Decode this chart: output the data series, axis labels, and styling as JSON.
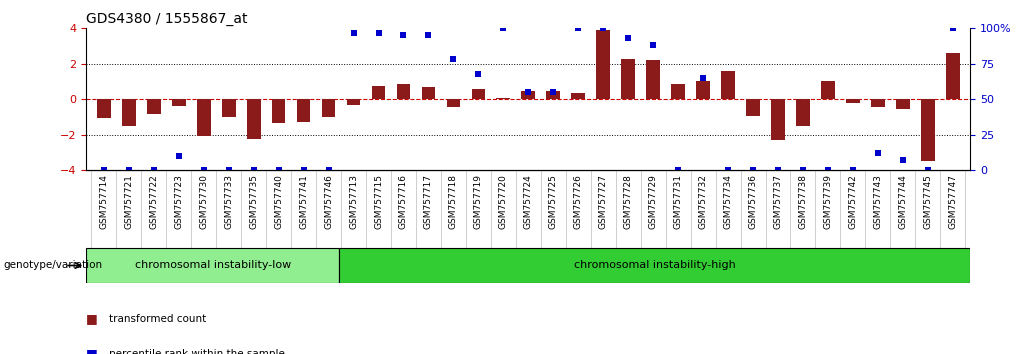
{
  "title": "GDS4380 / 1555867_at",
  "samples": [
    "GSM757714",
    "GSM757721",
    "GSM757722",
    "GSM757723",
    "GSM757730",
    "GSM757733",
    "GSM757735",
    "GSM757740",
    "GSM757741",
    "GSM757746",
    "GSM757713",
    "GSM757715",
    "GSM757716",
    "GSM757717",
    "GSM757718",
    "GSM757719",
    "GSM757720",
    "GSM757724",
    "GSM757725",
    "GSM757726",
    "GSM757727",
    "GSM757728",
    "GSM757729",
    "GSM757731",
    "GSM757732",
    "GSM757734",
    "GSM757736",
    "GSM757737",
    "GSM757738",
    "GSM757739",
    "GSM757742",
    "GSM757743",
    "GSM757744",
    "GSM757745",
    "GSM757747"
  ],
  "bar_values": [
    -1.05,
    -1.5,
    -0.85,
    -0.4,
    -2.1,
    -1.0,
    -2.25,
    -1.35,
    -1.3,
    -1.0,
    -0.35,
    0.75,
    0.85,
    0.7,
    -0.45,
    0.55,
    0.05,
    0.45,
    0.45,
    0.35,
    3.9,
    2.25,
    2.2,
    0.85,
    1.05,
    1.6,
    -0.95,
    -2.3,
    -1.5,
    1.0,
    -0.2,
    -0.45,
    -0.55,
    -3.5,
    2.6
  ],
  "percentile_values": [
    0,
    0,
    0,
    10,
    0,
    0,
    0,
    0,
    0,
    0,
    97,
    97,
    95,
    95,
    78,
    68,
    100,
    55,
    55,
    100,
    100,
    93,
    88,
    0,
    65,
    0,
    0,
    0,
    0,
    0,
    0,
    12,
    7,
    0,
    100
  ],
  "group1_label": "chromosomal instability-low",
  "group1_count": 10,
  "group2_label": "chromosomal instability-high",
  "group2_count": 25,
  "group_label": "genotype/variation",
  "bar_color": "#8B1A1A",
  "percentile_color": "#0000CC",
  "ylim": [
    -4,
    4
  ],
  "y_ticks": [
    -4,
    -2,
    0,
    2,
    4
  ],
  "right_yticks": [
    0,
    25,
    50,
    75,
    100
  ],
  "group1_color": "#90EE90",
  "group2_color": "#32CD32",
  "legend_bar_label": "transformed count",
  "legend_pct_label": "percentile rank within the sample",
  "hline_color": "#CC0000",
  "xlabel_fontsize": 6.5,
  "title_fontsize": 10
}
